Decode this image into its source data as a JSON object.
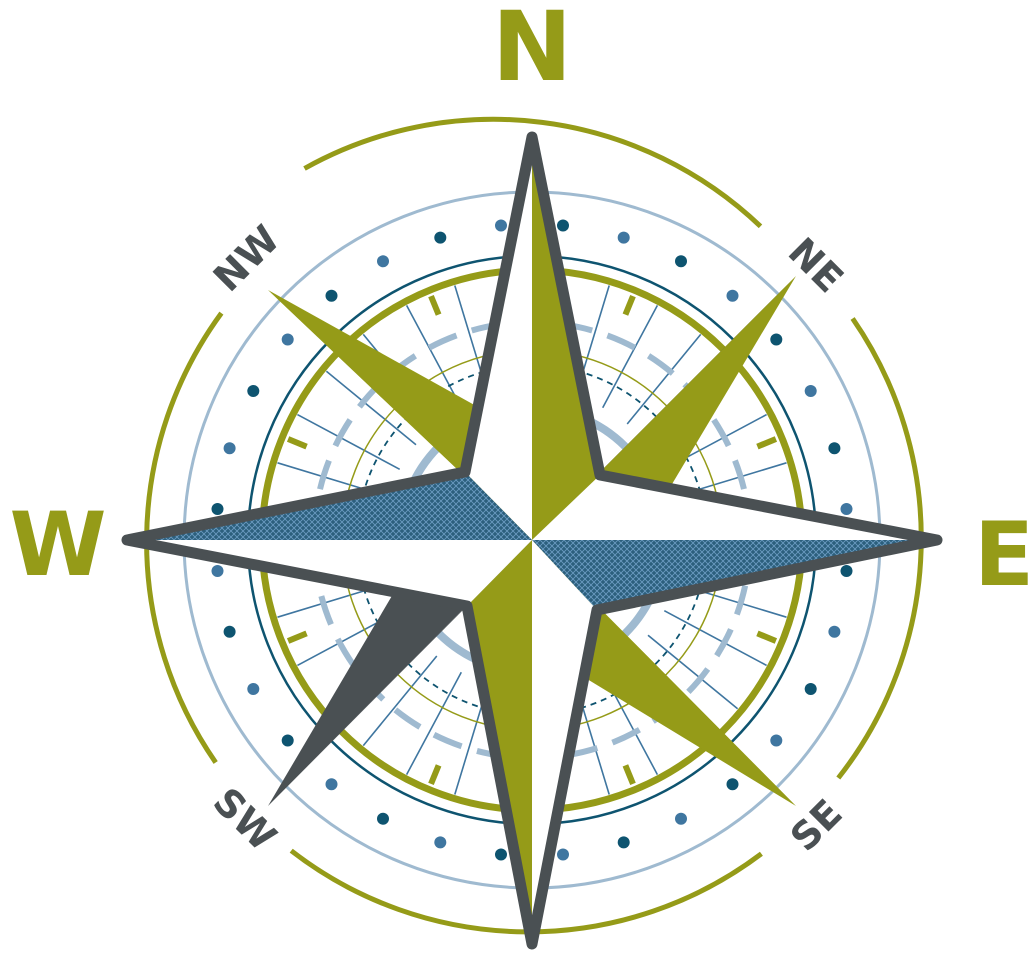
{
  "compass": {
    "cardinals": {
      "north": "N",
      "east": "E",
      "south": "",
      "west": "W"
    },
    "intercardinals": {
      "northeast": "NE",
      "southeast": "SE",
      "southwest": "SW",
      "northwest": "NW"
    },
    "colors": {
      "olive": "#959b18",
      "slate": "#4a5053",
      "navy": "#0e5470",
      "steel": "#3f76a0",
      "pale_blue": "#9fbad0",
      "white": "#ffffff"
    },
    "icons": [
      "compass-rose-icon"
    ]
  }
}
